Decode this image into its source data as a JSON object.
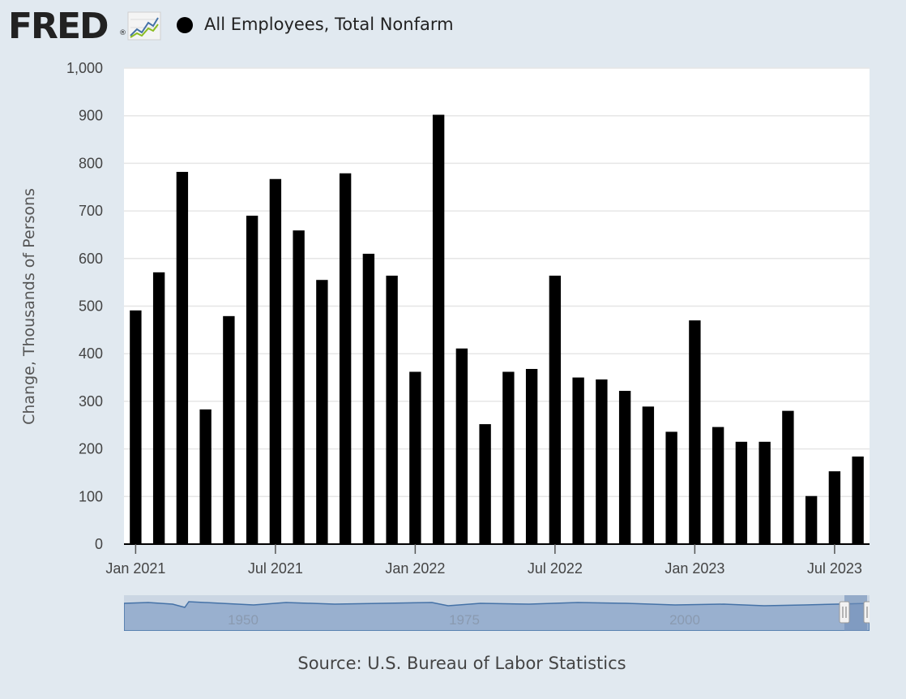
{
  "header": {
    "logo_text": "FRED",
    "logo_mark": "®",
    "trend_icon": "line-chart-icon",
    "series_name": "All Employees, Total Nonfarm"
  },
  "colors": {
    "background": "#e1e9f0",
    "plot_background": "#ffffff",
    "bar": "#000000",
    "navigator_fill": "#99b0cf",
    "navigator_line": "#4572a7"
  },
  "chart_data": {
    "type": "bar",
    "title": "",
    "xlabel": "",
    "ylabel": "Change, Thousands of Persons",
    "ylim": [
      0,
      1000
    ],
    "yticks": [
      "0",
      "100",
      "200",
      "300",
      "400",
      "500",
      "600",
      "700",
      "800",
      "900",
      "1,000"
    ],
    "xtick_labels": [
      "Jan 2021",
      "Jul 2021",
      "Jan 2022",
      "Jul 2022",
      "Jan 2023",
      "Jul 2023"
    ],
    "grid": true,
    "legend": "top-left",
    "categories": [
      "2021-01",
      "2021-02",
      "2021-03",
      "2021-04",
      "2021-05",
      "2021-06",
      "2021-07",
      "2021-08",
      "2021-09",
      "2021-10",
      "2021-11",
      "2021-12",
      "2022-01",
      "2022-02",
      "2022-03",
      "2022-04",
      "2022-05",
      "2022-06",
      "2022-07",
      "2022-08",
      "2022-09",
      "2022-10",
      "2022-11",
      "2022-12",
      "2023-01",
      "2023-02",
      "2023-03",
      "2023-04",
      "2023-05",
      "2023-06",
      "2023-07",
      "2023-08"
    ],
    "series": [
      {
        "name": "All Employees, Total Nonfarm",
        "values": [
          491,
          571,
          782,
          283,
          479,
          690,
          767,
          659,
          555,
          779,
          610,
          564,
          362,
          902,
          411,
          252,
          362,
          368,
          564,
          350,
          346,
          322,
          289,
          236,
          470,
          246,
          215,
          215,
          280,
          101,
          153,
          184
        ]
      }
    ]
  },
  "navigator": {
    "labels": [
      "1950",
      "1975",
      "2000"
    ]
  },
  "footer": {
    "source": "Source: U.S. Bureau of Labor Statistics"
  }
}
